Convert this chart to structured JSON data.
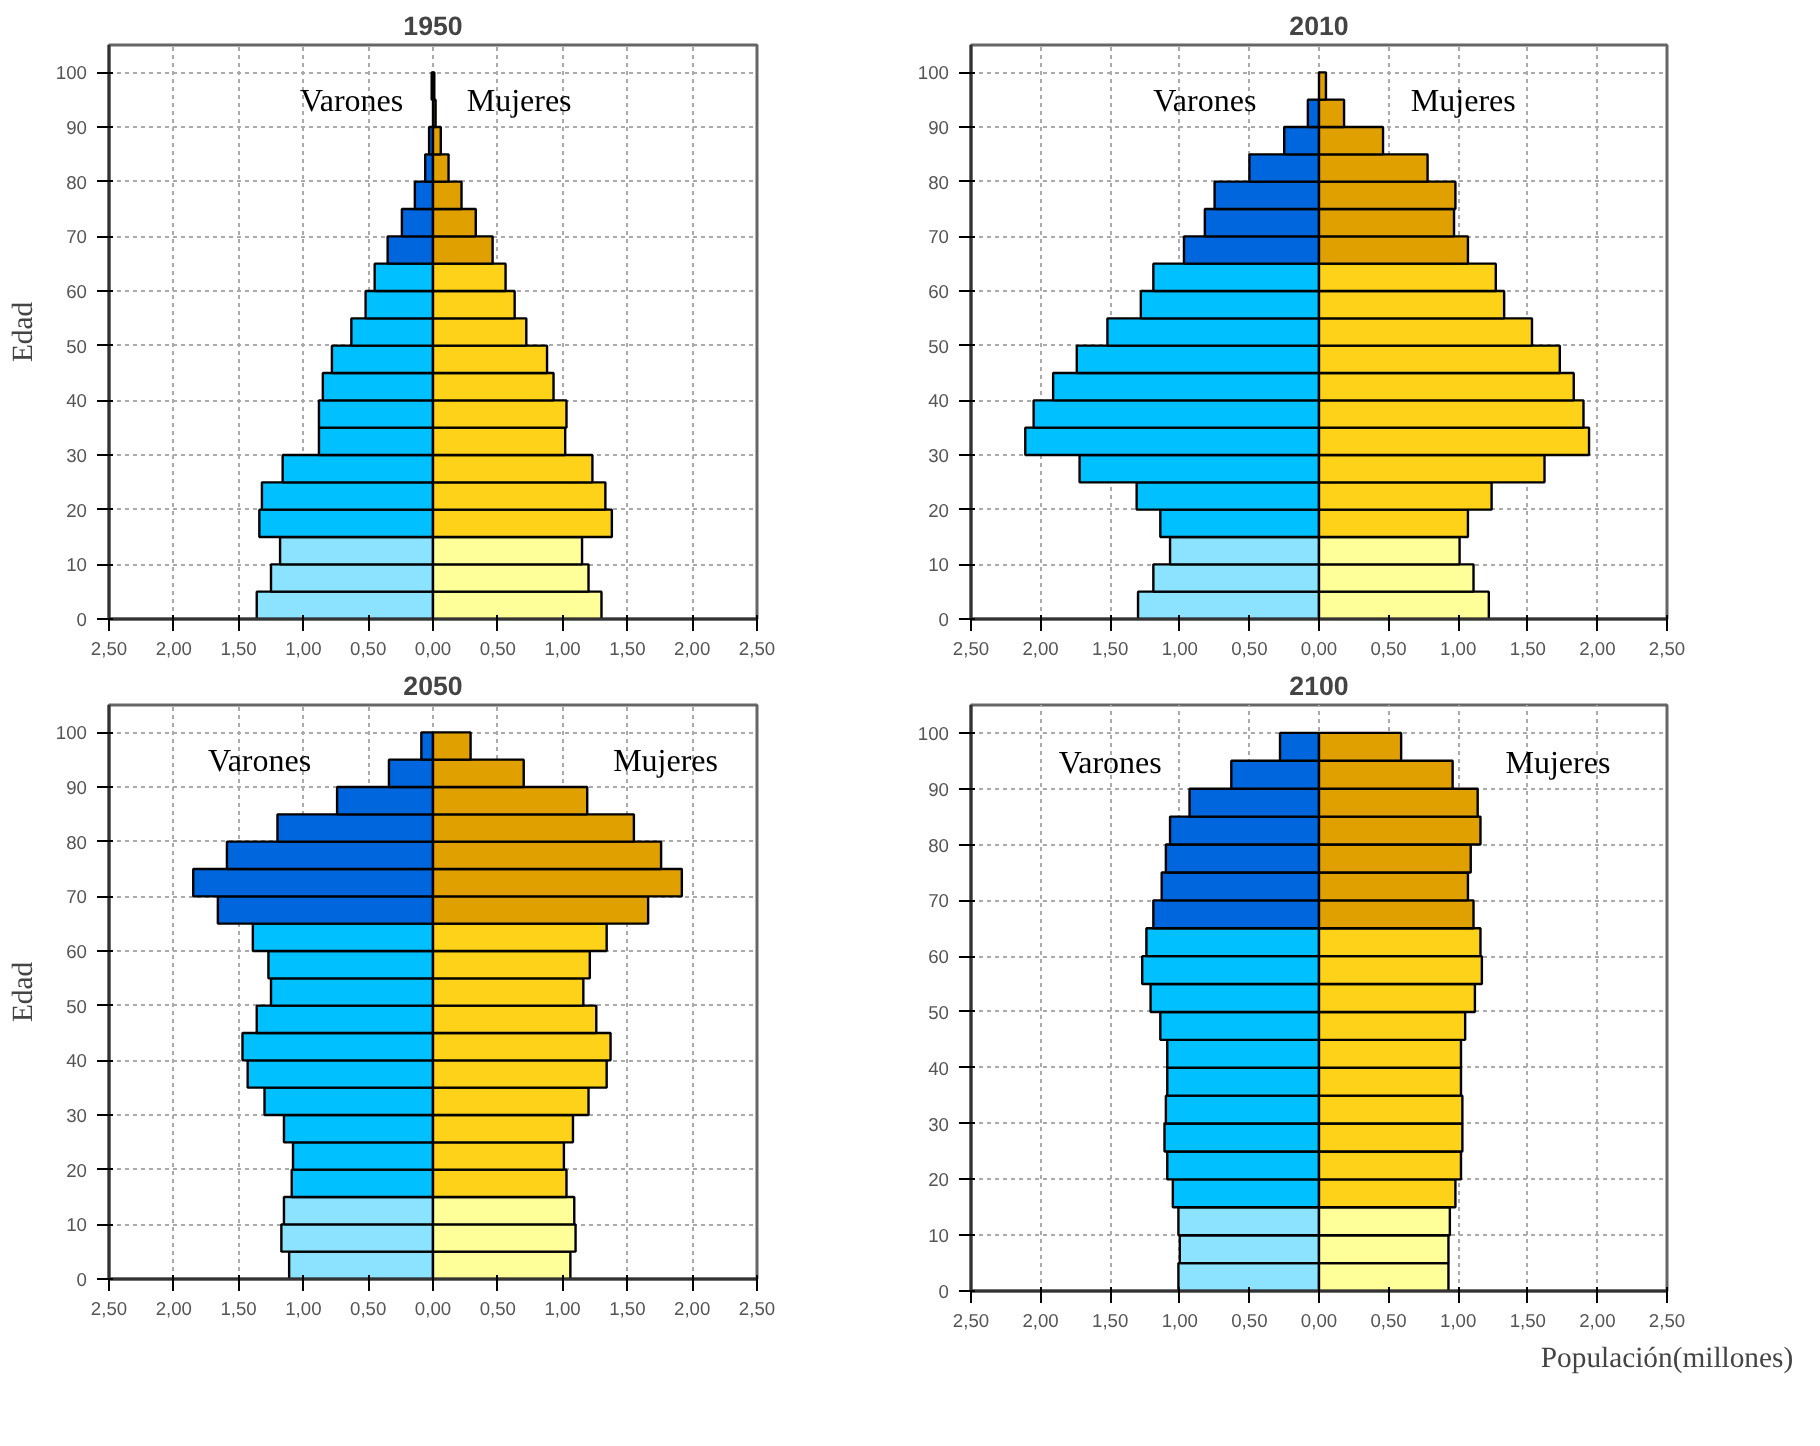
{
  "chart_data": [
    {
      "type": "bar",
      "orientation": "horizontal",
      "title": "1950",
      "ylabel": "Edad",
      "stacked": true,
      "x": [
        2.5,
        7.5,
        12.5,
        17.5,
        22.5,
        27.5,
        32.5,
        37.5,
        42.5,
        47.5,
        52.5,
        57.5,
        62.5,
        67.5,
        72.5,
        77.5,
        82.5,
        87.5,
        92.5,
        97.5
      ],
      "xlim": [
        -2.5,
        2.5
      ],
      "ylim": [
        0,
        105
      ],
      "xticks": [
        {
          "value": -2.5,
          "label": "2,50"
        },
        {
          "value": -2.0,
          "label": "2,00"
        },
        {
          "value": -1.5,
          "label": "1,50"
        },
        {
          "value": -1.0,
          "label": "1,00"
        },
        {
          "value": -0.5,
          "label": "0,50"
        },
        {
          "value": 0,
          "label": "0,00"
        },
        {
          "value": 0.5,
          "label": "0,50"
        },
        {
          "value": 1.0,
          "label": "1,00"
        },
        {
          "value": 1.5,
          "label": "1,50"
        },
        {
          "value": 2.0,
          "label": "2,00"
        },
        {
          "value": 2.5,
          "label": "2,50"
        }
      ],
      "yticks": [
        0,
        10,
        20,
        30,
        40,
        50,
        60,
        70,
        80,
        90,
        100
      ],
      "grid": true,
      "legend": false,
      "series": [
        {
          "name": "Varones",
          "colors": [
            "#8be3ff",
            "#8be3ff",
            "#8be3ff",
            "#00c0ff",
            "#00c0ff",
            "#00c0ff",
            "#00c0ff",
            "#00c0ff",
            "#00c0ff",
            "#00c0ff",
            "#00c0ff",
            "#00c0ff",
            "#00c0ff",
            "#0066dd",
            "#0066dd",
            "#0066dd",
            "#0066dd",
            "#0066dd",
            "#0066dd",
            "#0066dd"
          ],
          "values": [
            -1.36,
            -1.25,
            -1.18,
            -1.34,
            -1.32,
            -1.16,
            -0.88,
            -0.88,
            -0.85,
            -0.78,
            -0.63,
            -0.52,
            -0.45,
            -0.35,
            -0.24,
            -0.14,
            -0.06,
            -0.03,
            null,
            -0.01
          ]
        },
        {
          "name": "Mujeres",
          "colors": [
            "#ffff99",
            "#ffff99",
            "#ffff99",
            "#ffd21a",
            "#ffd21a",
            "#ffd21a",
            "#ffd21a",
            "#ffd21a",
            "#ffd21a",
            "#ffd21a",
            "#ffd21a",
            "#ffd21a",
            "#ffd21a",
            "#e0a000",
            "#e0a000",
            "#e0a000",
            "#e0a000",
            "#e0a000",
            "#e0a000",
            "#e0a000"
          ],
          "values": [
            1.3,
            1.2,
            1.15,
            1.38,
            1.33,
            1.23,
            1.02,
            1.03,
            0.93,
            0.88,
            0.72,
            0.63,
            0.56,
            0.46,
            0.33,
            0.22,
            0.12,
            0.06,
            0.02,
            0.01
          ]
        }
      ]
    },
    {
      "type": "bar",
      "orientation": "horizontal",
      "title": "2010",
      "stacked": true,
      "x": [
        2.5,
        7.5,
        12.5,
        17.5,
        22.5,
        27.5,
        32.5,
        37.5,
        42.5,
        47.5,
        52.5,
        57.5,
        62.5,
        67.5,
        72.5,
        77.5,
        82.5,
        87.5,
        92.5,
        97.5
      ],
      "xlim": [
        -2.5,
        2.5
      ],
      "ylim": [
        0,
        105
      ],
      "xticks": [
        {
          "value": -2.5,
          "label": "2,50"
        },
        {
          "value": -2.0,
          "label": "2,00"
        },
        {
          "value": -1.5,
          "label": "1,50"
        },
        {
          "value": -1.0,
          "label": "1,00"
        },
        {
          "value": -0.5,
          "label": "0,50"
        },
        {
          "value": 0,
          "label": "0,00"
        },
        {
          "value": 0.5,
          "label": "0,50"
        },
        {
          "value": 1.0,
          "label": "1,00"
        },
        {
          "value": 1.5,
          "label": "1,50"
        },
        {
          "value": 2.0,
          "label": "2,00"
        },
        {
          "value": 2.5,
          "label": "2,50"
        }
      ],
      "yticks": [
        0,
        10,
        20,
        30,
        40,
        50,
        60,
        70,
        80,
        90,
        100
      ],
      "grid": true,
      "legend": false,
      "series": [
        {
          "name": "Varones",
          "colors": [
            "#8be3ff",
            "#8be3ff",
            "#8be3ff",
            "#00c0ff",
            "#00c0ff",
            "#00c0ff",
            "#00c0ff",
            "#00c0ff",
            "#00c0ff",
            "#00c0ff",
            "#00c0ff",
            "#00c0ff",
            "#00c0ff",
            "#0066dd",
            "#0066dd",
            "#0066dd",
            "#0066dd",
            "#0066dd",
            "#0066dd",
            "#0066dd"
          ],
          "values": [
            -1.3,
            -1.19,
            -1.07,
            -1.14,
            -1.31,
            -1.72,
            -2.11,
            -2.05,
            -1.91,
            -1.74,
            -1.52,
            -1.28,
            -1.19,
            -0.97,
            -0.82,
            -0.75,
            -0.5,
            -0.25,
            -0.08,
            null
          ]
        },
        {
          "name": "Mujeres",
          "colors": [
            "#ffff99",
            "#ffff99",
            "#ffff99",
            "#ffd21a",
            "#ffd21a",
            "#ffd21a",
            "#ffd21a",
            "#ffd21a",
            "#ffd21a",
            "#ffd21a",
            "#ffd21a",
            "#ffd21a",
            "#ffd21a",
            "#e0a000",
            "#e0a000",
            "#e0a000",
            "#e0a000",
            "#e0a000",
            "#e0a000",
            "#e0a000"
          ],
          "values": [
            1.22,
            1.11,
            1.01,
            1.07,
            1.24,
            1.62,
            1.94,
            1.9,
            1.83,
            1.73,
            1.53,
            1.33,
            1.27,
            1.07,
            0.97,
            0.98,
            0.78,
            0.46,
            0.18,
            0.05
          ]
        }
      ]
    },
    {
      "type": "bar",
      "orientation": "horizontal",
      "title": "2050",
      "ylabel": "Edad",
      "stacked": true,
      "x": [
        2.5,
        7.5,
        12.5,
        17.5,
        22.5,
        27.5,
        32.5,
        37.5,
        42.5,
        47.5,
        52.5,
        57.5,
        62.5,
        67.5,
        72.5,
        77.5,
        82.5,
        87.5,
        92.5,
        97.5
      ],
      "xlim": [
        -2.5,
        2.5
      ],
      "ylim": [
        0,
        105
      ],
      "xticks": [
        {
          "value": -2.5,
          "label": "2,50"
        },
        {
          "value": -2.0,
          "label": "2,00"
        },
        {
          "value": -1.5,
          "label": "1,50"
        },
        {
          "value": -1.0,
          "label": "1,00"
        },
        {
          "value": -0.5,
          "label": "0,50"
        },
        {
          "value": 0,
          "label": "0,00"
        },
        {
          "value": 0.5,
          "label": "0,50"
        },
        {
          "value": 1.0,
          "label": "1,00"
        },
        {
          "value": 1.5,
          "label": "1,50"
        },
        {
          "value": 2.0,
          "label": "2,00"
        },
        {
          "value": 2.5,
          "label": "2,50"
        }
      ],
      "yticks": [
        0,
        10,
        20,
        30,
        40,
        50,
        60,
        70,
        80,
        90,
        100
      ],
      "grid": true,
      "legend": false,
      "series": [
        {
          "name": "Varones",
          "colors": [
            "#8be3ff",
            "#8be3ff",
            "#8be3ff",
            "#00c0ff",
            "#00c0ff",
            "#00c0ff",
            "#00c0ff",
            "#00c0ff",
            "#00c0ff",
            "#00c0ff",
            "#00c0ff",
            "#00c0ff",
            "#00c0ff",
            "#0066dd",
            "#0066dd",
            "#0066dd",
            "#0066dd",
            "#0066dd",
            "#0066dd",
            "#0066dd"
          ],
          "values": [
            -1.11,
            -1.17,
            -1.15,
            -1.09,
            -1.08,
            -1.15,
            -1.3,
            -1.43,
            -1.47,
            -1.36,
            -1.25,
            -1.27,
            -1.39,
            -1.66,
            -1.85,
            -1.59,
            -1.2,
            -0.74,
            -0.34,
            -0.09
          ]
        },
        {
          "name": "Mujeres",
          "colors": [
            "#ffff99",
            "#ffff99",
            "#ffff99",
            "#ffd21a",
            "#ffd21a",
            "#ffd21a",
            "#ffd21a",
            "#ffd21a",
            "#ffd21a",
            "#ffd21a",
            "#ffd21a",
            "#ffd21a",
            "#ffd21a",
            "#e0a000",
            "#e0a000",
            "#e0a000",
            "#e0a000",
            "#e0a000",
            "#e0a000",
            "#e0a000"
          ],
          "values": [
            1.06,
            1.1,
            1.09,
            1.03,
            1.01,
            1.08,
            1.2,
            1.34,
            1.37,
            1.26,
            1.16,
            1.21,
            1.34,
            1.66,
            1.92,
            1.76,
            1.55,
            1.19,
            0.7,
            0.29
          ]
        }
      ]
    },
    {
      "type": "bar",
      "orientation": "horizontal",
      "title": "2100",
      "stacked": true,
      "xlabel": "Populación(millones)",
      "x": [
        2.5,
        7.5,
        12.5,
        17.5,
        22.5,
        27.5,
        32.5,
        37.5,
        42.5,
        47.5,
        52.5,
        57.5,
        62.5,
        67.5,
        72.5,
        77.5,
        82.5,
        87.5,
        92.5,
        97.5
      ],
      "xlim": [
        -2.5,
        2.5
      ],
      "ylim": [
        0,
        105
      ],
      "xticks": [
        {
          "value": -2.5,
          "label": "2,50"
        },
        {
          "value": -2.0,
          "label": "2,00"
        },
        {
          "value": -1.5,
          "label": "1,50"
        },
        {
          "value": -1.0,
          "label": "1,00"
        },
        {
          "value": -0.5,
          "label": "0,50"
        },
        {
          "value": 0,
          "label": "0,00"
        },
        {
          "value": 0.5,
          "label": "0,50"
        },
        {
          "value": 1.0,
          "label": "1,00"
        },
        {
          "value": 1.5,
          "label": "1,50"
        },
        {
          "value": 2.0,
          "label": "2,00"
        },
        {
          "value": 2.5,
          "label": "2,50"
        }
      ],
      "yticks": [
        0,
        10,
        20,
        30,
        40,
        50,
        60,
        70,
        80,
        90,
        100
      ],
      "grid": true,
      "legend": false,
      "series": [
        {
          "name": "Varones",
          "colors": [
            "#8be3ff",
            "#8be3ff",
            "#8be3ff",
            "#00c0ff",
            "#00c0ff",
            "#00c0ff",
            "#00c0ff",
            "#00c0ff",
            "#00c0ff",
            "#00c0ff",
            "#00c0ff",
            "#00c0ff",
            "#00c0ff",
            "#0066dd",
            "#0066dd",
            "#0066dd",
            "#0066dd",
            "#0066dd",
            "#0066dd",
            "#0066dd"
          ],
          "values": [
            -1.01,
            -1.0,
            -1.01,
            -1.05,
            -1.09,
            -1.11,
            -1.1,
            -1.09,
            -1.09,
            -1.14,
            -1.21,
            -1.27,
            -1.24,
            -1.19,
            -1.13,
            -1.1,
            -1.07,
            -0.93,
            -0.63,
            -0.28
          ]
        },
        {
          "name": "Mujeres",
          "colors": [
            "#ffff99",
            "#ffff99",
            "#ffff99",
            "#ffd21a",
            "#ffd21a",
            "#ffd21a",
            "#ffd21a",
            "#ffd21a",
            "#ffd21a",
            "#ffd21a",
            "#ffd21a",
            "#ffd21a",
            "#ffd21a",
            "#e0a000",
            "#e0a000",
            "#e0a000",
            "#e0a000",
            "#e0a000",
            "#e0a000",
            "#e0a000"
          ],
          "values": [
            0.93,
            0.93,
            0.94,
            0.98,
            1.02,
            1.03,
            1.03,
            1.02,
            1.02,
            1.05,
            1.12,
            1.17,
            1.16,
            1.11,
            1.07,
            1.09,
            1.16,
            1.14,
            0.96,
            0.59
          ]
        }
      ]
    }
  ]
}
